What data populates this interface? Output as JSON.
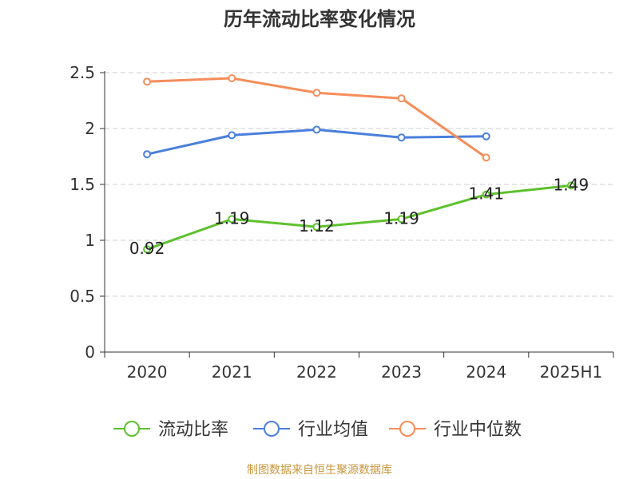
{
  "chart_data": {
    "type": "line",
    "title": "历年流动比率变化情况",
    "categories": [
      "2020",
      "2021",
      "2022",
      "2023",
      "2024",
      "2025H1"
    ],
    "ylim": [
      0,
      2.5
    ],
    "yticks": [
      "0",
      "0.5",
      "1",
      "1.5",
      "2",
      "2.5"
    ],
    "grid": true,
    "legend_position": "bottom",
    "series": [
      {
        "name": "流动比率",
        "color": "#5ec02e",
        "values": [
          0.92,
          1.19,
          1.12,
          1.19,
          1.41,
          1.49
        ],
        "data_labels": [
          "0.92",
          "1.19",
          "1.12",
          "1.19",
          "1.41",
          "1.49"
        ]
      },
      {
        "name": "行业均值",
        "color": "#4a7fdc",
        "values": [
          1.77,
          1.94,
          1.99,
          1.92,
          1.93,
          null
        ]
      },
      {
        "name": "行业中位数",
        "color": "#f58d5a",
        "values": [
          2.42,
          2.45,
          2.32,
          2.27,
          1.74,
          null
        ]
      }
    ]
  },
  "source": "制图数据来自恒生聚源数据库"
}
